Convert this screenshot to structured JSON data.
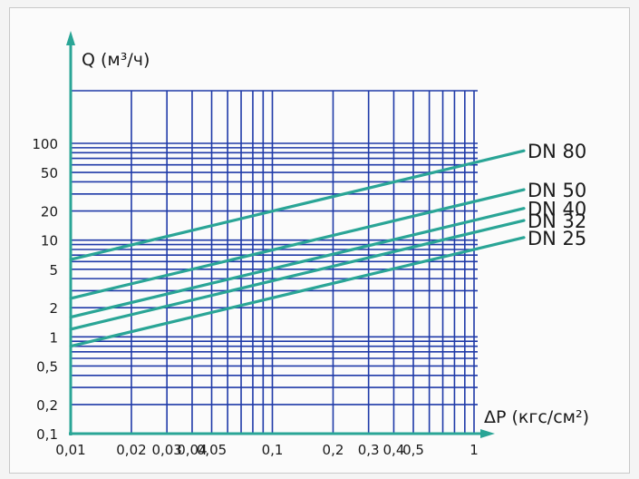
{
  "chart_data": {
    "type": "line",
    "xlabel": "ΔP (кгс/см²)",
    "ylabel": "Q (м³/ч)",
    "x_scale": "log",
    "y_scale": "log",
    "xlim": [
      0.01,
      1
    ],
    "ylim": [
      0.1,
      100
    ],
    "grid": true,
    "x_ticks": [
      {
        "value": 0.01,
        "label": "0,01"
      },
      {
        "value": 0.02,
        "label": "0,02"
      },
      {
        "value": 0.03,
        "label": "0,03"
      },
      {
        "value": 0.04,
        "label": "0,04"
      },
      {
        "value": 0.05,
        "label": "0,05"
      },
      {
        "value": 0.1,
        "label": "0,1"
      },
      {
        "value": 0.2,
        "label": "0,2"
      },
      {
        "value": 0.3,
        "label": "0,3"
      },
      {
        "value": 0.4,
        "label": "0,4"
      },
      {
        "value": 0.5,
        "label": "0,5"
      },
      {
        "value": 1,
        "label": "1"
      }
    ],
    "y_ticks": [
      {
        "value": 0.1,
        "label": "0,1"
      },
      {
        "value": 0.2,
        "label": "0,2"
      },
      {
        "value": 0.5,
        "label": "0,5"
      },
      {
        "value": 1,
        "label": "1"
      },
      {
        "value": 2,
        "label": "2"
      },
      {
        "value": 5,
        "label": "5"
      },
      {
        "value": 10,
        "label": "10"
      },
      {
        "value": 20,
        "label": "20"
      },
      {
        "value": 50,
        "label": "50"
      },
      {
        "value": 100,
        "label": "100"
      }
    ],
    "series": [
      {
        "name": "DN 80",
        "x": [
          0.01,
          1
        ],
        "y": [
          6.3,
          63
        ]
      },
      {
        "name": "DN 50",
        "x": [
          0.01,
          1
        ],
        "y": [
          2.5,
          25
        ]
      },
      {
        "name": "DN 40",
        "x": [
          0.01,
          1
        ],
        "y": [
          1.6,
          16
        ]
      },
      {
        "name": "DN 32",
        "x": [
          0.01,
          1
        ],
        "y": [
          1.2,
          12
        ]
      },
      {
        "name": "DN 25",
        "x": [
          0.01,
          1
        ],
        "y": [
          0.8,
          8
        ]
      }
    ],
    "colors": {
      "grid": "#1f3aa8",
      "series": "#2aa596",
      "axis": "#2aa596"
    }
  }
}
